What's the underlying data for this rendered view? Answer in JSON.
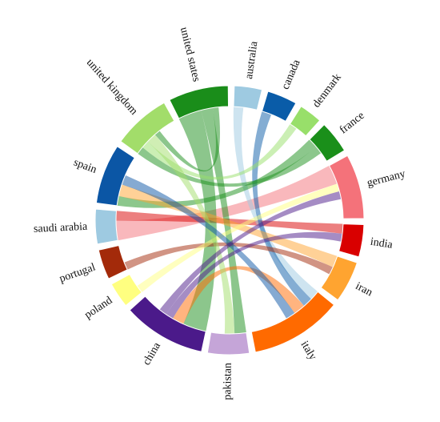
{
  "chart_data": {
    "type": "chord",
    "categories": [
      "australia",
      "canada",
      "denmark",
      "france",
      "germany",
      "india",
      "iran",
      "italy",
      "pakistan",
      "china",
      "poland",
      "portugal",
      "saudi arabia",
      "spain",
      "united kingdom",
      "united states"
    ],
    "values": [
      12,
      13,
      10,
      14,
      28,
      14,
      18,
      40,
      18,
      36,
      11,
      13,
      15,
      26,
      25,
      26
    ],
    "colors": [
      "#9ecae1",
      "#0a5ca8",
      "#98df6a",
      "#1a8f1a",
      "#f4727a",
      "#d90000",
      "#ffa430",
      "#ff6a00",
      "#c5a5d8",
      "#4b1a8a",
      "#ffff80",
      "#a32a0a",
      "#9ecae1",
      "#0b56a5",
      "#a2dd6a",
      "#1a8d1a"
    ],
    "links": [
      {
        "source": "germany",
        "target": "saudi arabia",
        "value": 10
      },
      {
        "source": "india",
        "target": "saudi arabia",
        "value": 5
      },
      {
        "source": "united states",
        "target": "china",
        "value": 12
      },
      {
        "source": "united states",
        "target": "pakistan",
        "value": 6
      },
      {
        "source": "australia",
        "target": "italy",
        "value": 5
      },
      {
        "source": "canada",
        "target": "italy",
        "value": 5
      },
      {
        "source": "france",
        "target": "spain",
        "value": 5
      },
      {
        "source": "france",
        "target": "united kingdom",
        "value": 4
      },
      {
        "source": "denmark",
        "target": "united kingdom",
        "value": 4
      },
      {
        "source": "iran",
        "target": "spain",
        "value": 6
      },
      {
        "source": "italy",
        "target": "china",
        "value": 6
      },
      {
        "source": "portugal",
        "target": "iran",
        "value": 4
      },
      {
        "source": "poland",
        "target": "germany",
        "value": 4
      },
      {
        "source": "united kingdom",
        "target": "pakistan",
        "value": 5
      },
      {
        "source": "spain",
        "target": "italy",
        "value": 5
      },
      {
        "source": "china",
        "target": "india",
        "value": 4
      },
      {
        "source": "china",
        "target": "germany",
        "value": 4
      },
      {
        "source": "united states",
        "target": "united kingdom",
        "value": 3
      }
    ]
  }
}
